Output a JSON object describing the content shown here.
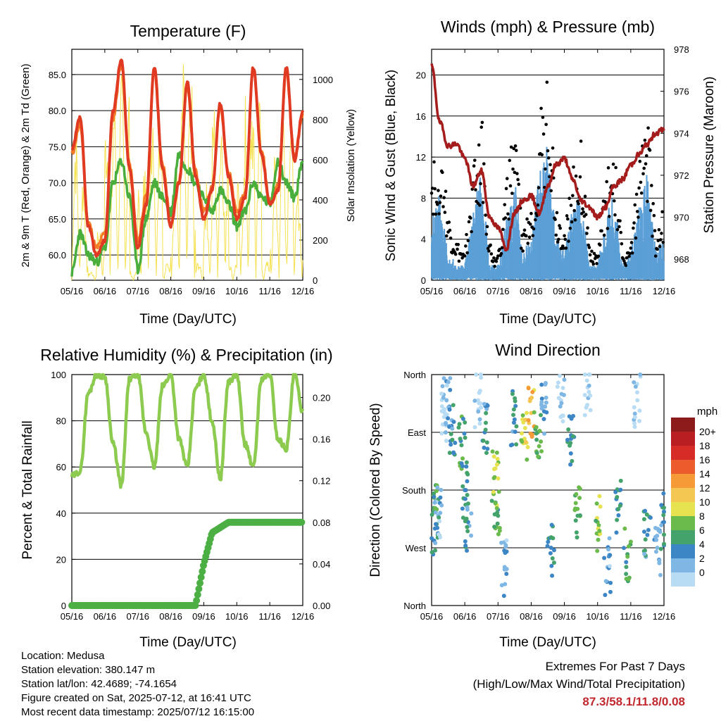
{
  "station": {
    "location": "Location: Medusa",
    "elevation": "Station elevation: 380.147 m",
    "latlon": "Station lat/lon: 42.4689; -74.1654",
    "created": "Figure created on Sat, 2025-07-12, at 16:41 UTC",
    "recent": "Most recent data timestamp: 2025/07/12 16:15:00"
  },
  "extremes": {
    "title": "Extremes For Past 7 Days",
    "subtitle": "(High/Low/Max Wind/Total Precipitation)",
    "values": "87.3/58.1/11.8/0.08"
  },
  "colors": {
    "temp_2m": "#e03a22",
    "temp_9m": "#f47d28",
    "dewpoint": "#4aae3c",
    "solar": "#f5e04e",
    "pressure": "#a51c1c",
    "gust": "#000000",
    "wind": "#5b9fd6",
    "rh": "#8ccb50",
    "precip": "#4caf44"
  },
  "chart_data": [
    {
      "type": "line",
      "title": "Temperature (F)",
      "xlabel": "Time (Day/UTC)",
      "ylabel": "2m & 9m T (Red, Orange) & 2m Td (Green)",
      "ylabel_right": "Solar Insolation (Yellow)",
      "x_ticks": [
        "05/16",
        "06/16",
        "07/16",
        "08/16",
        "09/16",
        "10/16",
        "11/16",
        "12/16"
      ],
      "y_ticks": [
        "60.0",
        "65.0",
        "70.0",
        "75.0",
        "80.0",
        "85.0"
      ],
      "y2_ticks": [
        "0",
        "200",
        "400",
        "600",
        "800",
        "1000"
      ],
      "ylim": [
        56.5,
        88.5
      ],
      "y2lim": [
        0,
        1150
      ],
      "grid": true,
      "x": [
        0,
        0.25,
        0.5,
        0.75,
        1,
        1.25,
        1.5,
        1.75,
        2,
        2.25,
        2.5,
        2.75,
        3,
        3.25,
        3.5,
        3.75,
        4,
        4.25,
        4.5,
        4.75,
        5,
        5.25,
        5.5,
        5.75,
        6,
        6.25,
        6.5,
        6.75,
        7
      ],
      "series": [
        {
          "name": "2m T",
          "values": [
            74.5,
            79,
            64,
            60,
            62,
            80,
            87,
            72,
            61,
            67,
            86,
            72,
            64,
            70,
            84,
            71,
            65,
            69,
            81,
            71,
            65,
            68,
            86,
            74,
            67,
            69,
            86,
            73,
            80
          ]
        },
        {
          "name": "9m T",
          "values": [
            74,
            78,
            64.5,
            61,
            63,
            79,
            86.5,
            72.5,
            62,
            68,
            85.5,
            72.5,
            65,
            70.5,
            83.5,
            71.5,
            66,
            69.5,
            80.5,
            71.5,
            66,
            68.5,
            85.5,
            74.5,
            67.5,
            69.5,
            85.5,
            73.5,
            79.5
          ]
        },
        {
          "name": "2m Td",
          "values": [
            57.5,
            63,
            60,
            59,
            61,
            70,
            73,
            68,
            58,
            65,
            70,
            68,
            66,
            74,
            72,
            70,
            68,
            66,
            69,
            67,
            64,
            66,
            70,
            68,
            67,
            73,
            70,
            68,
            73
          ]
        },
        {
          "name": "Solar",
          "values": [
            800,
            600,
            50,
            0,
            300,
            900,
            1050,
            0,
            50,
            600,
            1050,
            0,
            100,
            700,
            1100,
            0,
            100,
            500,
            950,
            0,
            100,
            600,
            1000,
            0,
            100,
            650,
            1000,
            0,
            500
          ]
        }
      ]
    },
    {
      "type": "line",
      "title": "Winds (mph) & Pressure (mb)",
      "xlabel": "Time (Day/UTC)",
      "ylabel": "Sonic Wind & Gust (Blue, Black)",
      "ylabel_right": "Station Pressure (Maroon)",
      "x_ticks": [
        "05/16",
        "06/16",
        "07/16",
        "08/16",
        "09/16",
        "10/16",
        "11/16",
        "12/16"
      ],
      "y_ticks": [
        "0",
        "4",
        "8",
        "12",
        "16",
        "20"
      ],
      "y2_ticks": [
        "968",
        "970",
        "972",
        "974",
        "976",
        "978"
      ],
      "ylim": [
        0,
        22.5
      ],
      "y2lim": [
        967,
        978
      ],
      "grid": true,
      "x": [
        0,
        0.25,
        0.5,
        0.75,
        1,
        1.25,
        1.5,
        1.75,
        2,
        2.25,
        2.5,
        2.75,
        3,
        3.25,
        3.5,
        3.75,
        4,
        4.25,
        4.5,
        4.75,
        5,
        5.25,
        5.5,
        5.75,
        6,
        6.25,
        6.5,
        6.75,
        7
      ],
      "series": [
        {
          "name": "Pressure",
          "values": [
            977.2,
            974.5,
            973.4,
            973.5,
            972.8,
            971.5,
            972.2,
            970,
            969.5,
            968.5,
            970.2,
            970.8,
            971,
            970.2,
            971.5,
            972.5,
            972.8,
            971.8,
            970.8,
            970.5,
            970,
            970.5,
            971.5,
            971.8,
            972.5,
            973,
            973.5,
            974,
            974.2
          ]
        },
        {
          "name": "Gust",
          "values": [
            9,
            12,
            5,
            3,
            2,
            10,
            14,
            3,
            2,
            8,
            12,
            4,
            6,
            13,
            18,
            6,
            4,
            9,
            11,
            3,
            2,
            8,
            12,
            2,
            3,
            9,
            13,
            4,
            6
          ]
        },
        {
          "name": "Wind",
          "values": [
            4,
            6,
            2,
            1,
            1,
            5,
            7,
            1,
            1,
            4,
            7,
            2,
            3,
            7,
            9,
            3,
            2,
            5,
            6,
            1,
            1,
            4,
            6,
            1,
            2,
            5,
            7,
            2,
            3
          ]
        }
      ]
    },
    {
      "type": "line",
      "title": "Relative Humidity (%) & Precipitation (in)",
      "xlabel": "Time (Day/UTC)",
      "ylabel": "Percent & Total Rainfall",
      "x_ticks": [
        "05/16",
        "06/16",
        "07/16",
        "08/16",
        "09/16",
        "10/16",
        "11/16",
        "12/16"
      ],
      "y_ticks": [
        "0",
        "20",
        "40",
        "60",
        "80",
        "100"
      ],
      "y2_ticks": [
        "0.00",
        "0.04",
        "0.08",
        "0.12",
        "0.16",
        "0.20"
      ],
      "ylim": [
        0,
        100
      ],
      "y2lim": [
        0,
        0.222
      ],
      "grid": true,
      "x": [
        0,
        0.25,
        0.5,
        0.75,
        1,
        1.25,
        1.5,
        1.75,
        2,
        2.25,
        2.5,
        2.75,
        3,
        3.25,
        3.5,
        3.75,
        4,
        4.25,
        4.5,
        4.75,
        5,
        5.25,
        5.5,
        5.75,
        6,
        6.25,
        6.5,
        6.75,
        7
      ],
      "series": [
        {
          "name": "RH",
          "values": [
            56,
            58,
            92,
            100,
            99,
            70,
            52,
            98,
            100,
            75,
            60,
            95,
            100,
            72,
            60,
            94,
            100,
            80,
            55,
            97,
            100,
            70,
            60,
            98,
            100,
            72,
            68,
            100,
            84
          ]
        },
        {
          "name": "Precip",
          "values": [
            0,
            0,
            0,
            0,
            0,
            0,
            0,
            0,
            0,
            0,
            0,
            0,
            0,
            0,
            0,
            0,
            0.04,
            0.07,
            0.075,
            0.08,
            0.08,
            0.08,
            0.08,
            0.08,
            0.08,
            0.08,
            0.08,
            0.08,
            0.08
          ]
        }
      ]
    },
    {
      "type": "scatter",
      "title": "Wind Direction",
      "xlabel": "Time (Day/UTC)",
      "ylabel": "Direction (Colored By Speed)",
      "x_ticks": [
        "05/16",
        "06/16",
        "07/16",
        "08/16",
        "09/16",
        "10/16",
        "11/16",
        "12/16"
      ],
      "y_ticks": [
        "North",
        "East",
        "South",
        "West",
        "North"
      ],
      "ylim": [
        0,
        360
      ],
      "grid": true,
      "legend_title": "mph",
      "legend_labels": [
        "20+",
        "18",
        "16",
        "14",
        "12",
        "10",
        "8",
        "6",
        "4",
        "2",
        "0"
      ],
      "legend_colors": [
        "#8e1b1b",
        "#b81e22",
        "#d72b27",
        "#ec5b2b",
        "#f59a36",
        "#f4c652",
        "#e6e250",
        "#6bba4c",
        "#43a36b",
        "#3d86c6",
        "#7fb7e4",
        "#b8dcf3"
      ],
      "points": [
        {
          "x": 0.1,
          "y": 120,
          "speed": 4
        },
        {
          "x": 0.15,
          "y": 150,
          "speed": 6
        },
        {
          "x": 0.2,
          "y": 140,
          "speed": 2
        },
        {
          "x": 0.4,
          "y": 300,
          "speed": 0
        },
        {
          "x": 0.45,
          "y": 320,
          "speed": 2
        },
        {
          "x": 0.6,
          "y": 280,
          "speed": 4
        },
        {
          "x": 0.9,
          "y": 250,
          "speed": 6
        },
        {
          "x": 1.0,
          "y": 180,
          "speed": 4
        },
        {
          "x": 1.1,
          "y": 130,
          "speed": 4
        },
        {
          "x": 1.4,
          "y": 320,
          "speed": 0
        },
        {
          "x": 1.6,
          "y": 270,
          "speed": 4
        },
        {
          "x": 1.9,
          "y": 200,
          "speed": 8
        },
        {
          "x": 2.0,
          "y": 140,
          "speed": 6
        },
        {
          "x": 2.2,
          "y": 60,
          "speed": 2
        },
        {
          "x": 2.5,
          "y": 290,
          "speed": 4
        },
        {
          "x": 2.8,
          "y": 260,
          "speed": 10
        },
        {
          "x": 3.0,
          "y": 300,
          "speed": 12
        },
        {
          "x": 3.2,
          "y": 270,
          "speed": 6
        },
        {
          "x": 3.4,
          "y": 310,
          "speed": 2
        },
        {
          "x": 3.6,
          "y": 90,
          "speed": 4
        },
        {
          "x": 3.9,
          "y": 320,
          "speed": 0
        },
        {
          "x": 4.2,
          "y": 260,
          "speed": 4
        },
        {
          "x": 4.4,
          "y": 140,
          "speed": 6
        },
        {
          "x": 4.7,
          "y": 340,
          "speed": 0
        },
        {
          "x": 5.0,
          "y": 130,
          "speed": 8
        },
        {
          "x": 5.3,
          "y": 60,
          "speed": 2
        },
        {
          "x": 5.6,
          "y": 150,
          "speed": 4
        },
        {
          "x": 5.9,
          "y": 80,
          "speed": 6
        },
        {
          "x": 6.2,
          "y": 320,
          "speed": 0
        },
        {
          "x": 6.5,
          "y": 110,
          "speed": 4
        },
        {
          "x": 6.8,
          "y": 90,
          "speed": 2
        },
        {
          "x": 7.0,
          "y": 130,
          "speed": 4
        }
      ]
    }
  ]
}
